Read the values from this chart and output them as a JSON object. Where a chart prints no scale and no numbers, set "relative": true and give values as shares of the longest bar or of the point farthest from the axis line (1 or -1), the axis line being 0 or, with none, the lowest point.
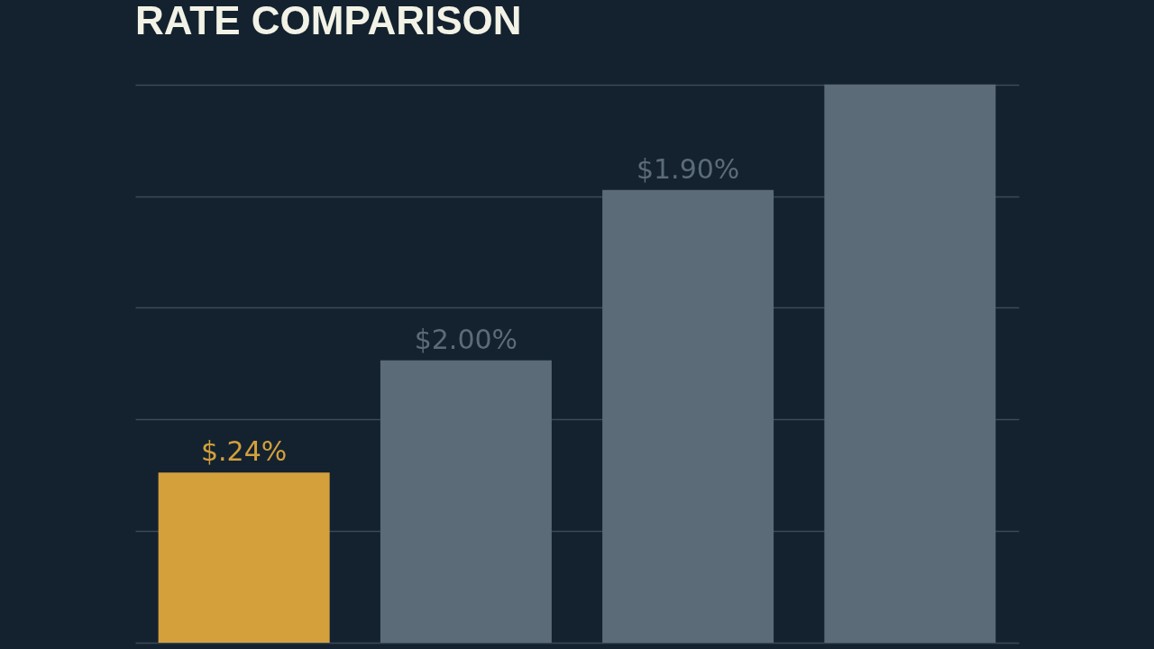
{
  "chart_data": {
    "type": "bar",
    "title": "RATE COMPARISON",
    "relative": true,
    "grid": "y",
    "categories": [
      null,
      null,
      null,
      null
    ],
    "values": [
      0.305,
      0.506,
      0.811,
      1
    ],
    "colors": [
      "#d4a03c",
      "#5b6b78",
      "#5b6b78",
      "#5b6b78"
    ],
    "annotations": [
      "$.24%",
      "$2.00%",
      "$1.90%"
    ]
  }
}
